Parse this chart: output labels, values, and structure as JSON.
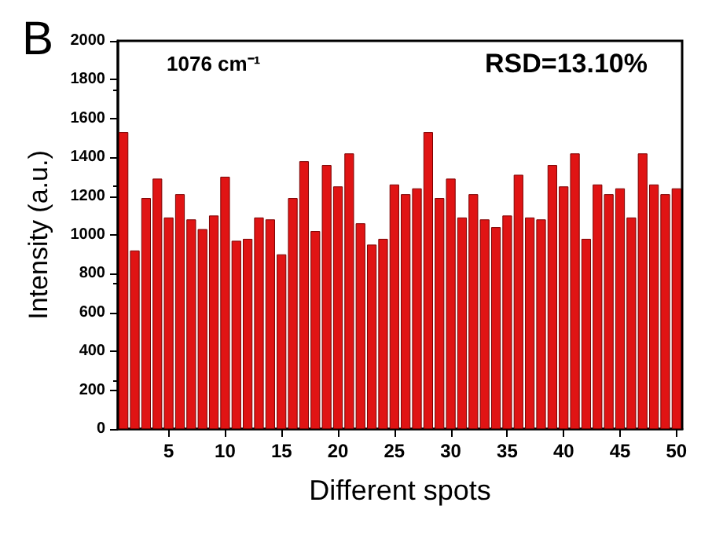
{
  "chart_data": {
    "type": "bar",
    "xlabel": "Different spots",
    "ylabel": "Intensity (a.u.)",
    "annotations": [
      "B",
      "1076 cm⁻¹",
      "RSD=13.10%"
    ],
    "x": [
      1,
      2,
      3,
      4,
      5,
      6,
      7,
      8,
      9,
      10,
      11,
      12,
      13,
      14,
      15,
      16,
      17,
      18,
      19,
      20,
      21,
      22,
      23,
      24,
      25,
      26,
      27,
      28,
      29,
      30,
      31,
      32,
      33,
      34,
      35,
      36,
      37,
      38,
      39,
      40,
      41,
      42,
      43,
      44,
      45,
      46,
      47,
      48,
      49,
      50
    ],
    "values": [
      1530,
      920,
      1190,
      1290,
      1090,
      1210,
      1080,
      1030,
      1100,
      1300,
      970,
      980,
      1090,
      1080,
      900,
      1190,
      1380,
      1020,
      1360,
      1250,
      1420,
      1060,
      950,
      980,
      1260,
      1210,
      1240,
      1530,
      1190,
      1290,
      1090,
      1210,
      1080,
      1040,
      1100,
      1310,
      1090,
      1080,
      1360,
      1250,
      1420,
      980,
      1260,
      1210,
      1240,
      1090,
      1420,
      1260,
      1210,
      1240
    ],
    "color": "#e01414",
    "xlim": [
      0.5,
      50.5
    ],
    "xticks": [
      5,
      10,
      15,
      20,
      25,
      30,
      35,
      40,
      45,
      50
    ],
    "ylim": [
      0,
      2000
    ],
    "yticks": [
      0,
      200,
      400,
      600,
      800,
      1000,
      1200,
      1400,
      1600,
      1800,
      2000
    ],
    "grid": false
  }
}
